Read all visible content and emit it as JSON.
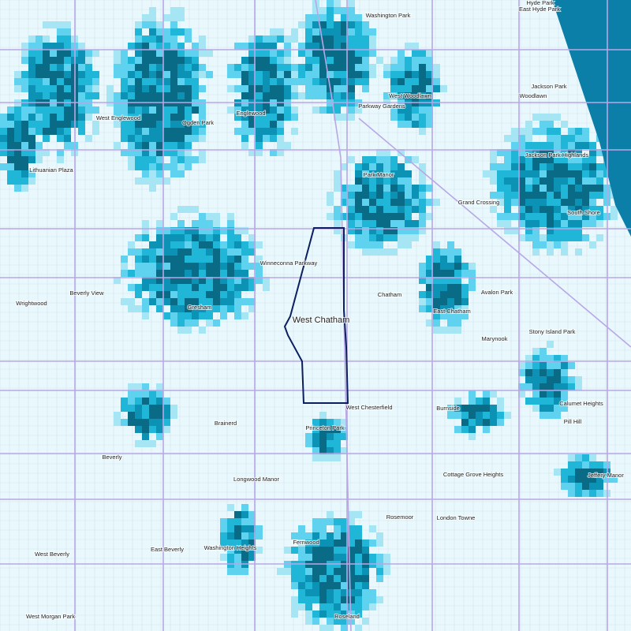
{
  "map": {
    "focus_label": "West Chatham",
    "labels": [
      "Washington Park",
      "Hyde Park",
      "East Hyde Park",
      "West Woodlawn",
      "Woodlawn",
      "Jackson Park",
      "Parkway Gardens",
      "West Englewood",
      "Ogden Park",
      "Englewood",
      "Lithuanian Plaza",
      "Park Manor",
      "Jackson Park Highlands",
      "Grand Crossing",
      "South Shore",
      "Winneconna Parkway",
      "Wrightwood",
      "Beverly View",
      "Gresham",
      "Chatham",
      "Avalon Park",
      "East Chatham",
      "Stony Island Park",
      "Marynook",
      "West Chesterfield",
      "Calumet Heights",
      "Burnside",
      "Brainerd",
      "Princeton Park",
      "Pill Hill",
      "Beverly",
      "Longwood Manor",
      "Cottage Grove Heights",
      "Jeffery Manor",
      "Rosemoor",
      "London Towne",
      "Washington Heights",
      "Fernwood",
      "East Beverly",
      "West Beverly",
      "West Morgan Park",
      "Roseland"
    ]
  }
}
